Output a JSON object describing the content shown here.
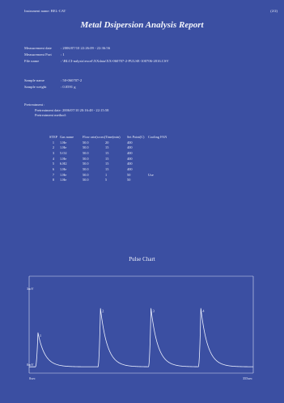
{
  "header": {
    "instrument": "Instrument name: BEL-CAT",
    "page": "(2/2)"
  },
  "title": "Metal Dsipersion Analysis Report",
  "measurement": [
    {
      "key": "Measurement date",
      "value": ": 2006/07/10 22:26:09 - 22:36:56"
    },
    {
      "key": "Measurement Port",
      "value": ": 1"
    },
    {
      "key": "File name",
      "value": ": \\BLCI-nalysis\\excel\\XXdata\\XX-060707-2-PULSE-100706-2016.CSV"
    }
  ],
  "sample": [
    {
      "key": "Sample name",
      "value": ": 50-060707-2"
    },
    {
      "key": "Sample weight",
      "value": ": 0.0591  g"
    }
  ],
  "pretreatment": {
    "heading": "Pretreatment :",
    "date": "Pretreatment date: 2006/07/10 20:16:48 - 22:15:58",
    "method": "Pretreatment method:"
  },
  "steps_table": {
    "headers": [
      "STEP",
      "Gas name",
      "Flow rate(sccm)",
      "Time(min)",
      "Set Point(C)",
      "Cooling FAN"
    ],
    "rows": [
      [
        "1",
        "1.He",
        "50.0",
        "20",
        "400",
        ""
      ],
      [
        "2",
        "1.He",
        "50.0",
        "15",
        "400",
        ""
      ],
      [
        "3",
        "5.O2",
        "50.0",
        "15",
        "400",
        ""
      ],
      [
        "4",
        "1.He",
        "50.0",
        "15",
        "400",
        ""
      ],
      [
        "5",
        "6.H2",
        "50.0",
        "15",
        "400",
        ""
      ],
      [
        "6",
        "1.He",
        "50.0",
        "15",
        "400",
        ""
      ],
      [
        "7",
        "1.He",
        "50.0",
        "1",
        "50",
        "Use"
      ],
      [
        "8",
        "1.He",
        "50.0",
        "5",
        "50",
        ""
      ]
    ]
  },
  "chart_data": {
    "type": "line",
    "title": "Pulse Chart",
    "ytop_label": "3mV",
    "ybottom_label": "0mV",
    "xleft_label": "0sec",
    "xright_label": "355sec",
    "xlim": [
      0,
      355
    ],
    "ylim": [
      0,
      3
    ],
    "peaks": [
      {
        "label": "1",
        "x": 14,
        "height": 1.2
      },
      {
        "label": "2",
        "x": 113,
        "height": 2.05
      },
      {
        "label": "3",
        "x": 193,
        "height": 2.05
      },
      {
        "label": "4",
        "x": 272,
        "height": 2.05
      }
    ],
    "line_color": "#eef2ff"
  }
}
